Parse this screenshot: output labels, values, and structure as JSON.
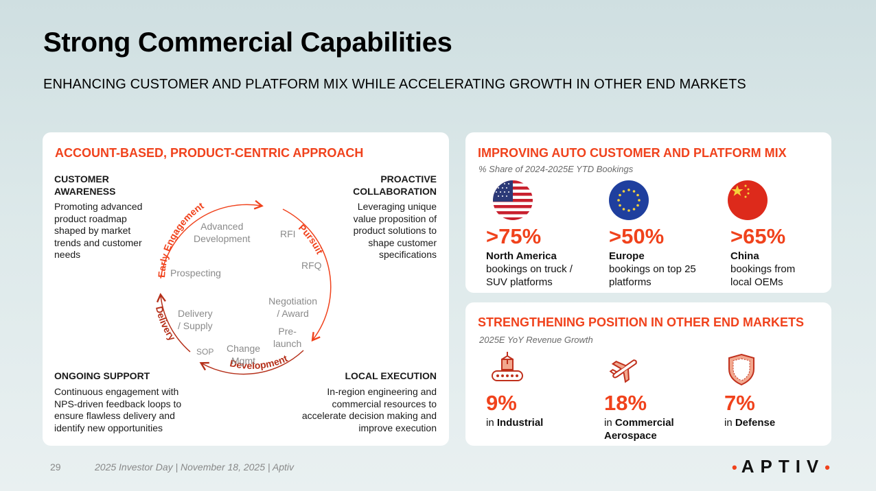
{
  "title": "Strong Commercial Capabilities",
  "subtitle": "ENHANCING CUSTOMER AND PLATFORM MIX WHILE ACCELERATING GROWTH IN OTHER END MARKETS",
  "left": {
    "header": "ACCOUNT-BASED, PRODUCT-CENTRIC APPROACH",
    "blocks": [
      {
        "heading": "CUSTOMER\nAWARENESS",
        "text": "Promoting advanced product roadmap shaped by market trends and customer needs"
      },
      {
        "heading": "PROACTIVE\nCOLLABORATION",
        "text": "Leveraging unique value proposition of product solutions to shape customer specifications"
      },
      {
        "heading": "ONGOING SUPPORT",
        "text": "Continuous engagement with NPS-driven feedback loops to ensure flawless delivery and identify new opportunities"
      },
      {
        "heading": "LOCAL EXECUTION",
        "text": "In-region engineering and commercial resources to accelerate decision making and improve execution"
      }
    ],
    "cycle": {
      "arcs": [
        "Early Engagement",
        "Pursuit",
        "Development",
        "Delivery"
      ],
      "stages": [
        "Advanced\nDevelopment",
        "RFI",
        "RFQ",
        "Prospecting",
        "Negotiation\n/ Award",
        "Delivery\n/ Supply",
        "Pre-\nlaunch",
        "SOP",
        "Change\nMgmt"
      ]
    }
  },
  "top_right": {
    "header": "IMPROVING AUTO CUSTOMER AND PLATFORM MIX",
    "note": "% Share of 2024-2025E YTD Bookings",
    "items": [
      {
        "value": ">75%",
        "region": "North America",
        "desc": "bookings on truck / SUV platforms",
        "icon": "us-flag-icon"
      },
      {
        "value": ">50%",
        "region": "Europe",
        "desc": "bookings on top 25 platforms",
        "icon": "eu-flag-icon"
      },
      {
        "value": ">65%",
        "region": "China",
        "desc": "bookings from local OEMs",
        "icon": "china-flag-icon"
      }
    ]
  },
  "bottom_right": {
    "header": "STRENGTHENING POSITION IN OTHER END MARKETS",
    "note": "2025E YoY Revenue Growth",
    "items": [
      {
        "value": "9%",
        "prefix": "in ",
        "market": "Industrial",
        "icon": "industrial-conveyor-icon"
      },
      {
        "value": "18%",
        "prefix": "in ",
        "market": "Commercial Aerospace",
        "icon": "airplane-icon"
      },
      {
        "value": "7%",
        "prefix": "in ",
        "market": "Defense",
        "icon": "shield-icon"
      }
    ]
  },
  "footer": {
    "page": "29",
    "text": "2025 Investor Day | November 18, 2025 | Aptiv",
    "logo": "APTIV"
  },
  "colors": {
    "accent": "#f0421c",
    "arc_dark": "#b5301a"
  }
}
